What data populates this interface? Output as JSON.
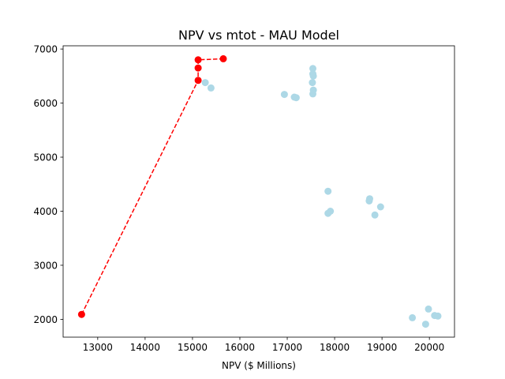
{
  "chart_data": {
    "type": "scatter",
    "title": "NPV vs mtot - MAU Model",
    "xlabel": "NPV ($ Millions)",
    "ylabel": "",
    "xlim": [
      12270,
      20530
    ],
    "ylim": [
      1670,
      7060
    ],
    "x_ticks": [
      13000,
      14000,
      15000,
      16000,
      17000,
      18000,
      19000,
      20000
    ],
    "y_ticks": [
      2000,
      3000,
      4000,
      5000,
      6000,
      7000
    ],
    "grid": false,
    "legend": "none",
    "colors": {
      "points": "#add8e6",
      "pareto": "#ff0000"
    },
    "series": [
      {
        "type": "scatter",
        "points": [
          [
            15270,
            6380
          ],
          [
            15390,
            6280
          ],
          [
            16940,
            6160
          ],
          [
            17150,
            6110
          ],
          [
            17190,
            6100
          ],
          [
            17540,
            6640
          ],
          [
            17540,
            6540
          ],
          [
            17550,
            6500
          ],
          [
            17530,
            6380
          ],
          [
            17550,
            6240
          ],
          [
            17540,
            6170
          ],
          [
            17860,
            4370
          ],
          [
            17860,
            3960
          ],
          [
            17910,
            4000
          ],
          [
            18740,
            4230
          ],
          [
            18730,
            4190
          ],
          [
            18970,
            4080
          ],
          [
            18850,
            3930
          ],
          [
            19640,
            2030
          ],
          [
            19980,
            2190
          ],
          [
            19920,
            1910
          ],
          [
            20110,
            2070
          ],
          [
            20180,
            2060
          ]
        ]
      },
      {
        "type": "line-marker",
        "style": "dashed",
        "points": [
          [
            12660,
            2090
          ],
          [
            15120,
            6420
          ],
          [
            15120,
            6650
          ],
          [
            15120,
            6800
          ],
          [
            15650,
            6820
          ]
        ]
      }
    ]
  }
}
